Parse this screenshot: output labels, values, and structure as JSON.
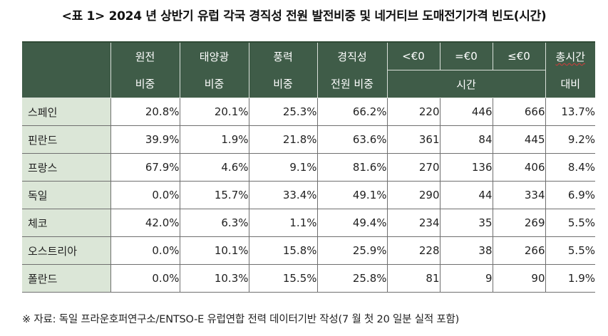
{
  "title": "<표 1> 2024 년 상반기 유럽 각국 경직성 전원 발전비중 및 네거티브 도매전기가격 빈도(시간)",
  "table": {
    "header_row1": [
      "원전",
      "태양광",
      "풍력",
      "경직성",
      "<€0",
      "=€0",
      "≤€0",
      "총시간"
    ],
    "header_row2": [
      "비중",
      "비중",
      "비중",
      "전원 비중",
      "시간",
      "대비"
    ],
    "rows": [
      {
        "country": "스페인",
        "cells": [
          "20.8%",
          "20.1%",
          "25.3%",
          "66.2%",
          "220",
          "446",
          "666",
          "13.7%"
        ]
      },
      {
        "country": "핀란드",
        "cells": [
          "39.9%",
          "1.9%",
          "21.8%",
          "63.6%",
          "361",
          "84",
          "445",
          "9.2%"
        ]
      },
      {
        "country": "프랑스",
        "cells": [
          "67.9%",
          "4.6%",
          "9.1%",
          "81.6%",
          "270",
          "136",
          "406",
          "8.4%"
        ]
      },
      {
        "country": "독일",
        "cells": [
          "0.0%",
          "15.7%",
          "33.4%",
          "49.1%",
          "290",
          "44",
          "334",
          "6.9%"
        ]
      },
      {
        "country": "체코",
        "cells": [
          "42.0%",
          "6.3%",
          "1.1%",
          "49.4%",
          "234",
          "35",
          "269",
          "5.5%"
        ]
      },
      {
        "country": "오스트리아",
        "cells": [
          "0.0%",
          "10.1%",
          "15.8%",
          "25.9%",
          "228",
          "38",
          "266",
          "5.5%"
        ]
      },
      {
        "country": "폴란드",
        "cells": [
          "0.0%",
          "10.3%",
          "15.5%",
          "25.8%",
          "81",
          "9",
          "90",
          "1.9%"
        ]
      }
    ]
  },
  "footnote": "※ 자료: 독일 프라운호퍼연구소/ENTSO-E 유럽연합 전력 데이터기반 작성(7 월 첫 20 일분 실적 포함)",
  "colors": {
    "header_bg": "#3f5c48",
    "country_bg": "#dbe6d7"
  }
}
